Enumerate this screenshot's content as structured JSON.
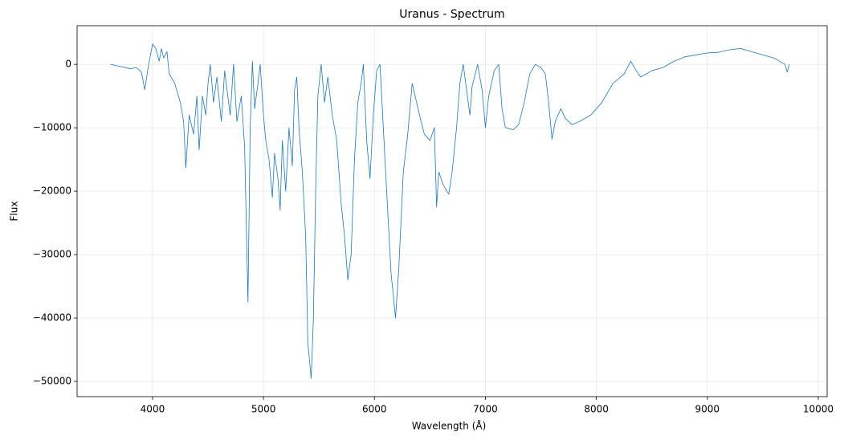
{
  "chart_data": {
    "type": "line",
    "title": "Uranus - Spectrum",
    "x_label": "Wavelength (Å)",
    "y_label": "Flux",
    "xlim": [
      3320,
      10080
    ],
    "ylim": [
      -52400,
      6100
    ],
    "xticks": [
      4000,
      5000,
      6000,
      7000,
      8000,
      9000,
      10000
    ],
    "yticks": [
      {
        "value": -50000,
        "label": "−50000"
      },
      {
        "value": -40000,
        "label": "−40000"
      },
      {
        "value": -30000,
        "label": "−30000"
      },
      {
        "value": -20000,
        "label": "−20000"
      },
      {
        "value": -10000,
        "label": "−10000"
      },
      0
    ],
    "grid": true,
    "series": [
      {
        "color": "#1f77b4",
        "x": [
          3620,
          3700,
          3800,
          3850,
          3900,
          3930,
          3960,
          4000,
          4030,
          4060,
          4080,
          4100,
          4130,
          4150,
          4200,
          4250,
          4280,
          4300,
          4330,
          4370,
          4400,
          4420,
          4450,
          4480,
          4500,
          4520,
          4550,
          4580,
          4620,
          4650,
          4700,
          4730,
          4760,
          4800,
          4830,
          4860,
          4880,
          4900,
          4920,
          4950,
          4970,
          5000,
          5020,
          5050,
          5080,
          5100,
          5130,
          5150,
          5170,
          5200,
          5230,
          5260,
          5280,
          5300,
          5320,
          5350,
          5380,
          5400,
          5430,
          5450,
          5470,
          5490,
          5520,
          5550,
          5580,
          5620,
          5660,
          5700,
          5730,
          5760,
          5790,
          5820,
          5850,
          5880,
          5900,
          5930,
          5960,
          5990,
          6020,
          6050,
          6080,
          6110,
          6150,
          6190,
          6220,
          6260,
          6300,
          6340,
          6380,
          6420,
          6450,
          6500,
          6540,
          6560,
          6580,
          6620,
          6670,
          6700,
          6740,
          6770,
          6800,
          6830,
          6860,
          6880,
          6930,
          6970,
          7000,
          7030,
          7080,
          7120,
          7150,
          7180,
          7250,
          7300,
          7350,
          7400,
          7450,
          7500,
          7540,
          7570,
          7600,
          7630,
          7680,
          7720,
          7780,
          7850,
          7950,
          8050,
          8150,
          8250,
          8310,
          8360,
          8400,
          8500,
          8600,
          8700,
          8800,
          8900,
          9000,
          9100,
          9200,
          9300,
          9400,
          9500,
          9600,
          9700,
          9720,
          9740
        ],
        "values": [
          0,
          -300,
          -700,
          -500,
          -1200,
          -4000,
          -500,
          3200,
          2500,
          500,
          2500,
          1000,
          2000,
          -1500,
          -3000,
          -6000,
          -9000,
          -16300,
          -8000,
          -11000,
          -5000,
          -13500,
          -5000,
          -8000,
          -3000,
          0,
          -6000,
          -2000,
          -9000,
          -1000,
          -8000,
          0,
          -9000,
          -5000,
          -13000,
          -37500,
          -10000,
          500,
          -7000,
          -3000,
          0,
          -8000,
          -12000,
          -15000,
          -21000,
          -14000,
          -18000,
          -23000,
          -12000,
          -20000,
          -10000,
          -16000,
          -4000,
          -2000,
          -10000,
          -17000,
          -27000,
          -44000,
          -49500,
          -40000,
          -20000,
          -5000,
          0,
          -6000,
          -2000,
          -8000,
          -12000,
          -22000,
          -27000,
          -34000,
          -30000,
          -15000,
          -6000,
          -3000,
          0,
          -12000,
          -18000,
          -8000,
          -1000,
          0,
          -10000,
          -20000,
          -33000,
          -40000,
          -32000,
          -17000,
          -11000,
          -3000,
          -6000,
          -9000,
          -11000,
          -12000,
          -10000,
          -22500,
          -17000,
          -19000,
          -20500,
          -17000,
          -10000,
          -3000,
          0,
          -4000,
          -8000,
          -3500,
          0,
          -4000,
          -10000,
          -5000,
          -1000,
          0,
          -7000,
          -10000,
          -10300,
          -9500,
          -6000,
          -1500,
          0,
          -500,
          -1500,
          -6000,
          -11800,
          -9000,
          -7000,
          -8500,
          -9500,
          -9000,
          -8000,
          -6000,
          -3000,
          -1500,
          500,
          -1000,
          -2000,
          -1000,
          -500,
          500,
          1200,
          1500,
          1800,
          1900,
          2300,
          2500,
          2000,
          1500,
          1000,
          0,
          -1200,
          0
        ]
      }
    ]
  }
}
